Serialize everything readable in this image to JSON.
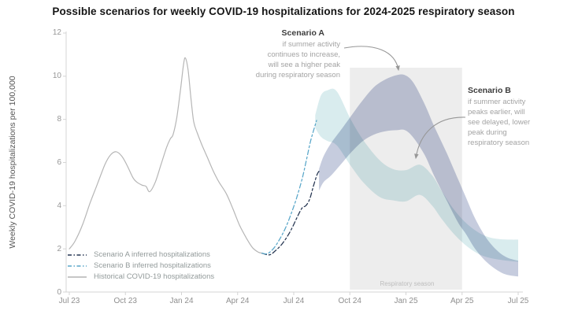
{
  "title": "Possible scenarios for weekly COVID-19 hospitalizations for 2024-2025 respiratory season",
  "annotations": {
    "scenario_a": {
      "title": "Scenario A",
      "lines": [
        "if summer activity",
        "continues to increase,",
        "will see a higher peak",
        "during respiratory season"
      ]
    },
    "scenario_b": {
      "title": "Scenario B",
      "lines": [
        "if summer activity",
        "peaks earlier, will",
        "see delayed, lower",
        "peak during",
        "respiratory season"
      ]
    }
  },
  "legend": [
    {
      "label": "Scenario A inferred hospitalizations",
      "color": "#243450",
      "dash": "5 2.5 1.5 2.5"
    },
    {
      "label": "Scenario B inferred hospitalizations",
      "color": "#58a6c9",
      "dash": "5 2.5 1.5 2.5"
    },
    {
      "label": "Historical COVID-19 hospitalizations",
      "color": "#b4b4b4",
      "dash": ""
    }
  ],
  "chart_data": {
    "type": "line",
    "title": "Possible scenarios for weekly COVID-19 hospitalizations for 2024-2025 respiratory season",
    "xlabel": "",
    "ylabel": "Weekly COVID-19 hospitalizations per 100,000",
    "ylim": [
      0,
      12
    ],
    "xlim_months_since_jul_2023": [
      0,
      24
    ],
    "grid": false,
    "ytick_values": [
      0,
      2,
      4,
      6,
      8,
      10,
      12
    ],
    "xticks": [
      {
        "month": 0,
        "label": "Jul 23"
      },
      {
        "month": 3,
        "label": "Oct 23"
      },
      {
        "month": 6,
        "label": "Jan 24"
      },
      {
        "month": 9,
        "label": "Apr 24"
      },
      {
        "month": 12,
        "label": "Jul 24"
      },
      {
        "month": 15,
        "label": "Oct 24"
      },
      {
        "month": 18,
        "label": "Jan 25"
      },
      {
        "month": 21,
        "label": "Apr 25"
      },
      {
        "month": 24,
        "label": "Jul 25"
      }
    ],
    "respiratory_season": {
      "label": "Respiratory season",
      "start_month": 15,
      "end_month": 21
    },
    "colors": {
      "historical": "#b6b6b6",
      "scenario_a_line": "#243450",
      "scenario_b_line": "#58a6c9",
      "scenario_a_band": "#c6ccde",
      "scenario_b_band": "#d9ecee",
      "season_box": "#ededed",
      "arrow": "#979797"
    },
    "series": [
      {
        "name": "Historical COVID-19 hospitalizations",
        "style": "solid",
        "points": [
          [
            0,
            2.0
          ],
          [
            0.3,
            2.35
          ],
          [
            0.7,
            3.1
          ],
          [
            1.1,
            4.1
          ],
          [
            1.5,
            5.0
          ],
          [
            1.9,
            5.9
          ],
          [
            2.2,
            6.35
          ],
          [
            2.5,
            6.5
          ],
          [
            2.8,
            6.3
          ],
          [
            3.1,
            5.85
          ],
          [
            3.4,
            5.3
          ],
          [
            3.6,
            5.1
          ],
          [
            3.9,
            4.95
          ],
          [
            4.1,
            4.9
          ],
          [
            4.3,
            4.65
          ],
          [
            4.6,
            5.1
          ],
          [
            4.9,
            5.9
          ],
          [
            5.2,
            6.7
          ],
          [
            5.4,
            7.1
          ],
          [
            5.55,
            7.3
          ],
          [
            5.75,
            8.1
          ],
          [
            5.95,
            9.4
          ],
          [
            6.1,
            10.5
          ],
          [
            6.2,
            10.85
          ],
          [
            6.35,
            10.3
          ],
          [
            6.5,
            9.0
          ],
          [
            6.65,
            7.9
          ],
          [
            6.85,
            7.35
          ],
          [
            7.1,
            6.8
          ],
          [
            7.4,
            6.2
          ],
          [
            7.7,
            5.6
          ],
          [
            8.0,
            5.1
          ],
          [
            8.4,
            4.55
          ],
          [
            8.75,
            3.85
          ],
          [
            9.1,
            3.1
          ],
          [
            9.5,
            2.45
          ],
          [
            9.8,
            2.05
          ],
          [
            10.1,
            1.85
          ],
          [
            10.3,
            1.8
          ]
        ]
      },
      {
        "name": "Scenario A inferred hospitalizations",
        "style": "dashed",
        "points": [
          [
            10.3,
            1.8
          ],
          [
            10.7,
            1.72
          ],
          [
            11.0,
            1.9
          ],
          [
            11.3,
            2.15
          ],
          [
            11.6,
            2.5
          ],
          [
            11.9,
            2.95
          ],
          [
            12.2,
            3.5
          ],
          [
            12.45,
            3.9
          ],
          [
            12.65,
            4.0
          ],
          [
            12.85,
            4.3
          ],
          [
            13.05,
            4.9
          ],
          [
            13.25,
            5.45
          ],
          [
            13.35,
            5.6
          ]
        ]
      },
      {
        "name": "Scenario B inferred hospitalizations",
        "style": "dashed",
        "points": [
          [
            10.3,
            1.8
          ],
          [
            10.6,
            1.78
          ],
          [
            10.95,
            2.05
          ],
          [
            11.25,
            2.45
          ],
          [
            11.55,
            2.95
          ],
          [
            11.85,
            3.6
          ],
          [
            12.15,
            4.35
          ],
          [
            12.45,
            5.25
          ],
          [
            12.7,
            6.2
          ],
          [
            12.9,
            7.0
          ],
          [
            13.1,
            7.6
          ],
          [
            13.22,
            7.95
          ]
        ]
      }
    ],
    "bands": [
      {
        "name": "Scenario B projected range",
        "points": [
          [
            13.15,
            8.2,
            7.6
          ],
          [
            13.45,
            9.1,
            7.2
          ],
          [
            13.8,
            9.35,
            7.0
          ],
          [
            14.3,
            9.3,
            6.8
          ],
          [
            15.05,
            8.0,
            5.85
          ],
          [
            15.75,
            7.0,
            5.05
          ],
          [
            16.6,
            6.1,
            4.4
          ],
          [
            17.3,
            5.7,
            4.25
          ],
          [
            18.0,
            5.65,
            4.2
          ],
          [
            18.75,
            5.9,
            4.5
          ],
          [
            19.4,
            5.4,
            4.0
          ],
          [
            19.9,
            4.7,
            3.4
          ],
          [
            20.5,
            3.9,
            2.75
          ],
          [
            21.15,
            3.25,
            2.2
          ],
          [
            21.8,
            2.8,
            1.8
          ],
          [
            22.4,
            2.55,
            1.6
          ],
          [
            23.0,
            2.45,
            1.5
          ],
          [
            23.6,
            2.43,
            1.43
          ],
          [
            24.0,
            2.43,
            1.4
          ]
        ]
      },
      {
        "name": "Scenario A projected range",
        "points": [
          [
            13.35,
            5.7,
            4.7
          ],
          [
            13.6,
            6.3,
            5.1
          ],
          [
            14.0,
            6.9,
            5.4
          ],
          [
            14.6,
            7.6,
            6.0
          ],
          [
            15.1,
            8.2,
            6.5
          ],
          [
            15.7,
            8.9,
            7.0
          ],
          [
            16.3,
            9.5,
            7.3
          ],
          [
            16.9,
            9.85,
            7.45
          ],
          [
            17.5,
            10.05,
            7.5
          ],
          [
            17.95,
            10.05,
            7.5
          ],
          [
            18.4,
            9.7,
            7.15
          ],
          [
            19.0,
            8.7,
            6.35
          ],
          [
            19.5,
            7.7,
            5.4
          ],
          [
            20.2,
            6.4,
            4.2
          ],
          [
            20.8,
            5.2,
            3.2
          ],
          [
            21.2,
            4.4,
            2.7
          ],
          [
            21.7,
            3.4,
            2.0
          ],
          [
            22.3,
            2.5,
            1.4
          ],
          [
            22.9,
            1.9,
            1.0
          ],
          [
            23.4,
            1.6,
            0.8
          ],
          [
            24.0,
            1.45,
            0.72
          ]
        ]
      }
    ]
  }
}
